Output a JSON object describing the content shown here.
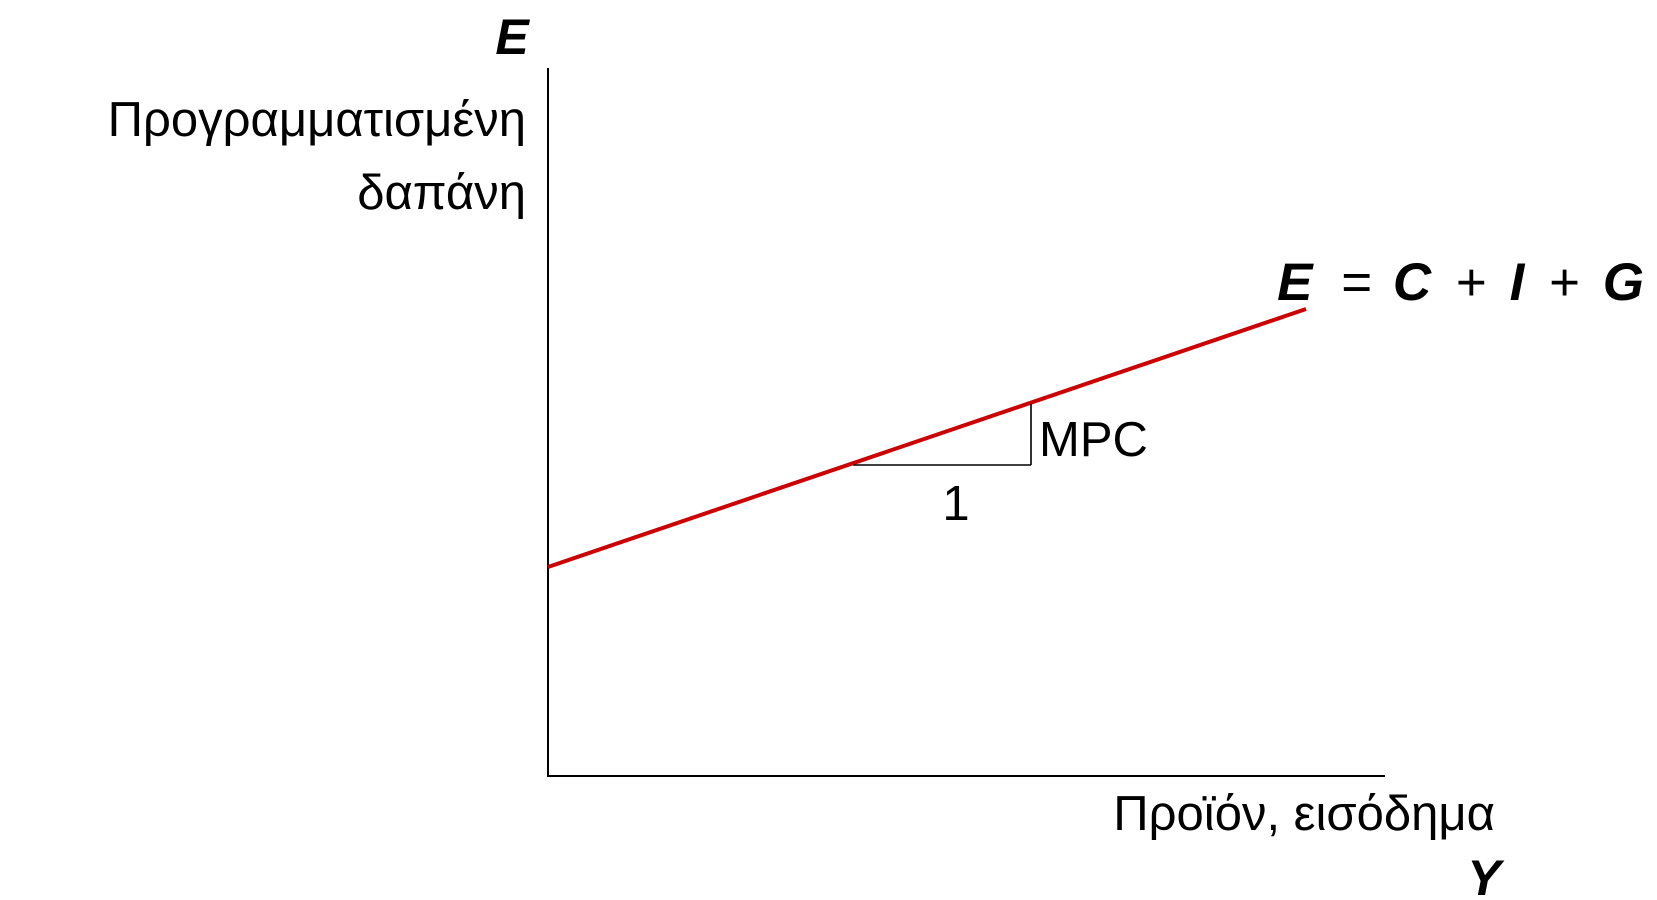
{
  "chart_data": {
    "type": "line",
    "y_axis": {
      "symbol": "E",
      "label_lines": [
        "Προγραμματισμένη",
        "δαπάνη"
      ]
    },
    "x_axis": {
      "symbol": "Y",
      "label": "Προϊόν, εισόδημα"
    },
    "series": [
      {
        "name": "E = C + I + G",
        "name_parts": [
          "E",
          "=",
          "C",
          "+",
          "I",
          "+",
          "G"
        ],
        "color": "#cc0000"
      }
    ],
    "slope_triangle": {
      "run_label": "1",
      "rise_label": "MPC"
    },
    "colors": {
      "axes": "#000000",
      "line": "#cc0000"
    }
  }
}
